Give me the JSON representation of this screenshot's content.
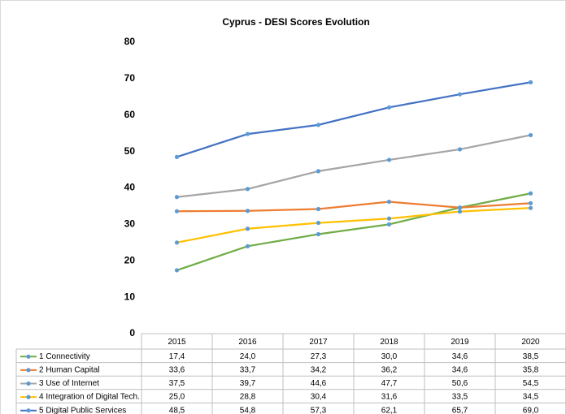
{
  "chart_data": {
    "type": "line",
    "title": "Cyprus - DESI Scores Evolution",
    "categories": [
      "2015",
      "2016",
      "2017",
      "2018",
      "2019",
      "2020"
    ],
    "series": [
      {
        "name": "1 Connectivity",
        "color": "#70ad47",
        "values": [
          17.4,
          24.0,
          27.3,
          30.0,
          34.6,
          38.5
        ],
        "value_labels": [
          "17,4",
          "24,0",
          "27,3",
          "30,0",
          "34,6",
          "38,5"
        ]
      },
      {
        "name": "2 Human Capital",
        "color": "#ed7d31",
        "values": [
          33.6,
          33.7,
          34.2,
          36.2,
          34.6,
          35.8
        ],
        "value_labels": [
          "33,6",
          "33,7",
          "34,2",
          "36,2",
          "34,6",
          "35,8"
        ]
      },
      {
        "name": "3 Use of Internet",
        "color": "#a5a5a5",
        "values": [
          37.5,
          39.7,
          44.6,
          47.7,
          50.6,
          54.5
        ],
        "value_labels": [
          "37,5",
          "39,7",
          "44,6",
          "47,7",
          "50,6",
          "54,5"
        ]
      },
      {
        "name": "4 Integration of Digital Tech.",
        "color": "#ffc000",
        "values": [
          25.0,
          28.8,
          30.4,
          31.6,
          33.5,
          34.5
        ],
        "value_labels": [
          "25,0",
          "28,8",
          "30,4",
          "31,6",
          "33,5",
          "34,5"
        ]
      },
      {
        "name": "5 Digital Public Services",
        "color": "#4472c4",
        "values": [
          48.5,
          54.8,
          57.3,
          62.1,
          65.7,
          69.0
        ],
        "value_labels": [
          "48,5",
          "54,8",
          "57,3",
          "62,1",
          "65,7",
          "69,0"
        ]
      }
    ],
    "marker_color": "#5b9bd5",
    "ylim": [
      0,
      80
    ],
    "yticks": [
      0,
      10,
      20,
      30,
      40,
      50,
      60,
      70,
      80
    ],
    "grid": false
  }
}
